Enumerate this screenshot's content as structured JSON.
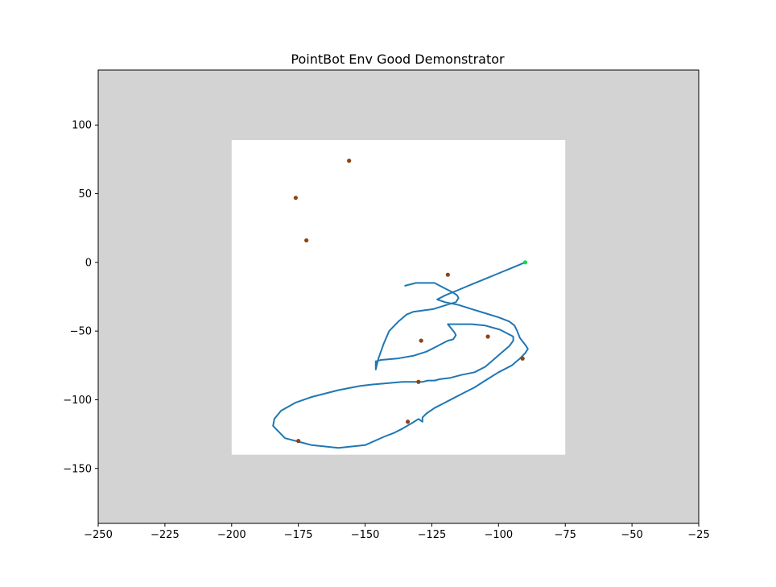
{
  "chart_data": {
    "type": "line",
    "title": "PointBot Env Good Demonstrator",
    "xlabel": "",
    "ylabel": "",
    "xlim": [
      -250,
      -25
    ],
    "ylim": [
      -190,
      140
    ],
    "xticks": [
      -250,
      -225,
      -200,
      -175,
      -150,
      -125,
      -100,
      -75,
      -50,
      -25
    ],
    "yticks": [
      100,
      50,
      0,
      -50,
      -100,
      -150
    ],
    "grid": false,
    "legend": "none",
    "colors": {
      "outer_region": "#d3d3d3",
      "safe_region": "#ffffff",
      "trajectory": "#1f77b4",
      "obstacles": "#8b4513",
      "goal": "#00e050"
    },
    "safe_region": {
      "x": [
        -200,
        -75
      ],
      "y": [
        -140,
        89
      ]
    },
    "goal": {
      "x": -90,
      "y": 0
    },
    "obstacles": [
      {
        "x": -156,
        "y": 74
      },
      {
        "x": -176,
        "y": 47
      },
      {
        "x": -172,
        "y": 16
      },
      {
        "x": -119,
        "y": -9
      },
      {
        "x": -129,
        "y": -57
      },
      {
        "x": -104,
        "y": -54
      },
      {
        "x": -91,
        "y": -70
      },
      {
        "x": -130,
        "y": -87
      },
      {
        "x": -134,
        "y": -116
      },
      {
        "x": -175,
        "y": -130
      }
    ],
    "series": [
      {
        "x": [
          -90,
          -95,
          -100,
          -105,
          -110,
          -115,
          -120,
          -123,
          -120,
          -115,
          -110,
          -105,
          -100,
          -96,
          -94,
          -93,
          -92,
          -90,
          -89,
          -90,
          -92,
          -95,
          -100,
          -105,
          -109,
          -113,
          -117,
          -121,
          -124,
          -127,
          -128.5,
          -128.5,
          -130,
          -132.5,
          -136,
          -139,
          -143,
          -150,
          -160,
          -170,
          -180,
          -184.5,
          -184,
          -181.5,
          -176,
          -170,
          -160,
          -152,
          -148,
          -142,
          -136,
          -131,
          -128.5,
          -126.5,
          -125.5,
          -124,
          -122,
          -118,
          -114,
          -109,
          -105,
          -102,
          -99,
          -96,
          -94.5,
          -94.5,
          -99.5,
          -105,
          -110,
          -115,
          -117,
          -119,
          -116.5,
          -116,
          -117,
          -119,
          -121,
          -124,
          -127,
          -132,
          -138,
          -144,
          -146,
          -146,
          -145,
          -143,
          -141,
          -137.5,
          -134.5,
          -132,
          -124.5,
          -119.5,
          -116,
          -115,
          -115.5,
          -117,
          -119,
          -121,
          -123,
          -124,
          -126,
          -128,
          -129.5,
          -131,
          -133,
          -135
        ],
        "y": [
          0,
          -4,
          -8,
          -12,
          -16,
          -20,
          -24,
          -27,
          -29,
          -31,
          -34,
          -37,
          -40,
          -43,
          -46,
          -50,
          -55,
          -60,
          -63,
          -66,
          -70,
          -75,
          -80,
          -86,
          -91,
          -95,
          -99,
          -103,
          -106,
          -110,
          -113,
          -116,
          -114,
          -117,
          -121,
          -124,
          -127,
          -133,
          -135,
          -133,
          -128,
          -119,
          -114,
          -108,
          -102,
          -98,
          -93,
          -90,
          -89,
          -88,
          -87,
          -87,
          -87,
          -86,
          -86,
          -86,
          -85,
          -84,
          -82,
          -80,
          -76,
          -71,
          -66,
          -61,
          -57,
          -54,
          -49,
          -46,
          -45,
          -45,
          -45,
          -45,
          -51,
          -53,
          -56,
          -57,
          -59,
          -62,
          -65,
          -68,
          -70,
          -71,
          -72,
          -78,
          -70,
          -59,
          -50,
          -43,
          -38,
          -36,
          -34,
          -31,
          -29,
          -26,
          -24,
          -22,
          -20,
          -18,
          -16,
          -15,
          -15,
          -15,
          -15,
          -15,
          -16,
          -17
        ]
      }
    ]
  }
}
